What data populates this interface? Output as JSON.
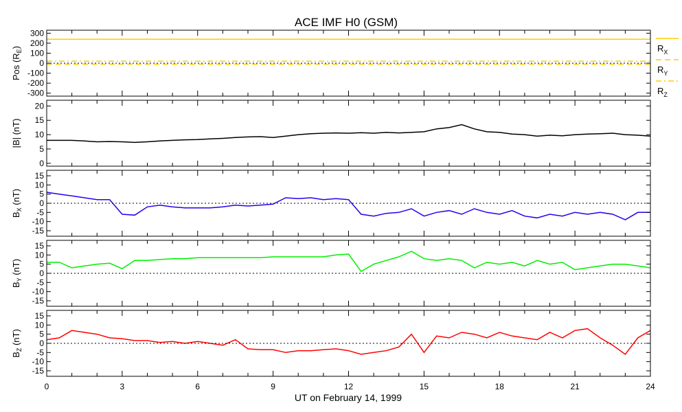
{
  "chart_data": {
    "type": "line",
    "title": "ACE IMF H0 (GSM)",
    "xlabel": "UT on February 14, 1999",
    "xlim": [
      0,
      24
    ],
    "xticks": [
      0,
      3,
      6,
      9,
      12,
      15,
      18,
      21,
      24
    ],
    "x_hours_step": 0.5,
    "panels": [
      {
        "ylabel": "Pos (R",
        "ylabel_sub": "E",
        "ylabel_end": ")",
        "ylim": [
          -330,
          330
        ],
        "yticks": [
          -300,
          -200,
          -100,
          0,
          100,
          200,
          300
        ],
        "series": [
          {
            "name": "R",
            "sub": "X",
            "color": "#ffcc00",
            "style": "solid",
            "constant": 240
          },
          {
            "name": "R",
            "sub": "Y",
            "color": "#ffcc00",
            "style": "dash",
            "constant": -10
          },
          {
            "name": "R",
            "sub": "Z",
            "color": "#ffcc00",
            "style": "dashdot",
            "constant": 20
          }
        ]
      },
      {
        "ylabel": "|B| (nT)",
        "ylim": [
          -1,
          22
        ],
        "yticks": [
          0,
          5,
          10,
          15,
          20
        ],
        "zero_line": false,
        "series": [
          {
            "name": "|B|",
            "color": "#000000",
            "values": [
              8,
              8,
              8,
              7.8,
              7.5,
              7.6,
              7.5,
              7.3,
              7.5,
              7.8,
              8,
              8.2,
              8.3,
              8.5,
              8.7,
              9,
              9.2,
              9.3,
              9,
              9.5,
              10,
              10.3,
              10.5,
              10.6,
              10.5,
              10.7,
              10.5,
              10.8,
              10.6,
              10.8,
              11,
              12,
              12.5,
              13.5,
              12,
              11,
              10.8,
              10.2,
              10,
              9.5,
              9.8,
              9.6,
              10,
              10.2,
              10.3,
              10.5,
              10,
              9.8,
              9.5
            ]
          }
        ]
      },
      {
        "ylabel": "B",
        "ylabel_sub": "X",
        "ylabel_end": " (nT)",
        "ylim": [
          -18,
          18
        ],
        "yticks": [
          -15,
          -10,
          -5,
          0,
          5,
          10,
          15
        ],
        "zero_line": true,
        "series": [
          {
            "name": "Bx",
            "color": "#2200ee",
            "values": [
              6,
              5,
              4,
              3,
              2,
              2,
              -6,
              -6.5,
              -2,
              -1,
              -2,
              -2.5,
              -2.5,
              -2.5,
              -2,
              -1,
              -1.5,
              -1,
              -0.5,
              3,
              2.5,
              3,
              2,
              2.5,
              2,
              -6,
              -7,
              -5.5,
              -5,
              -3,
              -7,
              -5,
              -4,
              -6,
              -3,
              -5,
              -6,
              -4,
              -7,
              -8,
              -6,
              -7,
              -5,
              -6,
              -5,
              -6,
              -9,
              -5,
              -5
            ]
          }
        ]
      },
      {
        "ylabel": "B",
        "ylabel_sub": "Y",
        "ylabel_end": " (nT)",
        "ylim": [
          -18,
          18
        ],
        "yticks": [
          -15,
          -10,
          -5,
          0,
          5,
          10,
          15
        ],
        "zero_line": true,
        "series": [
          {
            "name": "By",
            "color": "#00ee00",
            "values": [
              6,
              6,
              3,
              4,
              5,
              5.5,
              2.5,
              7,
              7,
              7.5,
              8,
              8,
              8.5,
              8.5,
              8.5,
              8.5,
              8.5,
              8.5,
              9,
              9,
              9,
              9,
              9,
              10,
              10.5,
              1,
              5,
              7,
              9,
              12,
              8,
              7,
              8,
              7,
              3,
              6,
              5,
              6,
              4,
              7,
              5,
              6,
              2,
              3,
              4,
              5,
              5,
              4,
              3
            ]
          }
        ]
      },
      {
        "ylabel": "B",
        "ylabel_sub": "Z",
        "ylabel_end": " (nT)",
        "ylim": [
          -18,
          18
        ],
        "yticks": [
          -15,
          -10,
          -5,
          0,
          5,
          10,
          15
        ],
        "zero_line": true,
        "series": [
          {
            "name": "Bz",
            "color": "#ff0000",
            "values": [
              2,
              3,
              7,
              6,
              5,
              3,
              2.5,
              1.5,
              1.5,
              0.5,
              1,
              0,
              1,
              0,
              -1,
              2,
              -3,
              -3.5,
              -3.5,
              -5,
              -4,
              -4,
              -3.5,
              -3,
              -4,
              -6,
              -5,
              -4,
              -2,
              5,
              -5,
              4,
              3,
              6,
              5,
              3,
              6,
              4,
              3,
              2,
              6,
              3,
              7,
              8,
              3,
              -1,
              -6,
              3,
              7
            ]
          }
        ]
      }
    ]
  }
}
